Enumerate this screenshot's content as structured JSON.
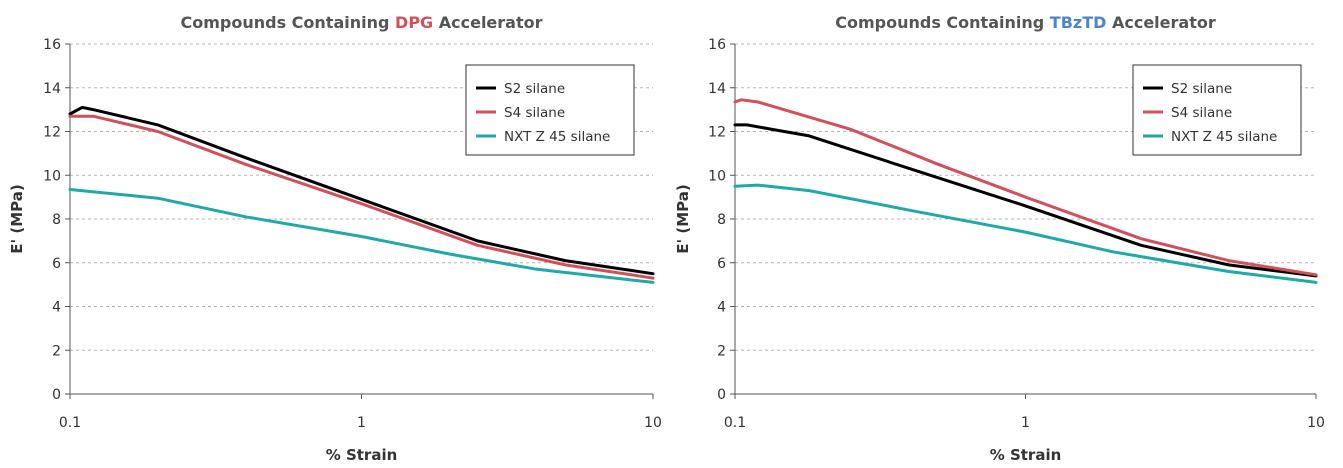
{
  "chart_data": [
    {
      "type": "line",
      "title": "Compounds Containing DPG Accelerator",
      "title_parts": [
        {
          "text": "Compounds Containing ",
          "color": "#555555"
        },
        {
          "text": "DPG",
          "color": "#d1505a"
        },
        {
          "text": " Accelerator",
          "color": "#555555"
        }
      ],
      "xlabel": "% Strain",
      "ylabel": "E' (MPa)",
      "xscale": "log",
      "xlim": [
        0.1,
        10
      ],
      "ylim": [
        0,
        16
      ],
      "xticks": [
        "0.1",
        "1",
        "10"
      ],
      "yticks": [
        "0",
        "2",
        "4",
        "6",
        "8",
        "10",
        "12",
        "14",
        "16"
      ],
      "grid": "horizontal dashed",
      "legend_position": "top-right",
      "series": [
        {
          "name": "S2 silane",
          "color": "#000000",
          "x": [
            0.1,
            0.11,
            0.12,
            0.2,
            0.4,
            1.0,
            2.5,
            5.0,
            10.0
          ],
          "y": [
            12.8,
            13.1,
            13.0,
            12.3,
            10.8,
            8.9,
            7.0,
            6.1,
            5.5
          ]
        },
        {
          "name": "S4 silane",
          "color": "#d1505a",
          "x": [
            0.1,
            0.12,
            0.2,
            0.4,
            1.0,
            2.5,
            5.0,
            10.0
          ],
          "y": [
            12.7,
            12.7,
            12.0,
            10.5,
            8.7,
            6.8,
            5.9,
            5.3
          ],
          "y_": null
        },
        {
          "name": "NXT Z 45 silane",
          "color": "#1fa9a9",
          "x": [
            0.1,
            0.2,
            0.4,
            1.0,
            2.0,
            4.0,
            10.0
          ],
          "y": [
            9.35,
            8.95,
            8.1,
            7.2,
            6.4,
            5.7,
            5.1
          ]
        }
      ]
    },
    {
      "type": "line",
      "title": "Compounds Containing TBzTD Accelerator",
      "title_parts": [
        {
          "text": "Compounds Containing ",
          "color": "#555555"
        },
        {
          "text": "TBzTD",
          "color": "#4a86c8"
        },
        {
          "text": " Accelerator",
          "color": "#555555"
        }
      ],
      "xlabel": "% Strain",
      "ylabel": "E' (MPa)",
      "xscale": "log",
      "xlim": [
        0.1,
        10
      ],
      "ylim": [
        0,
        16
      ],
      "xticks": [
        "0.1",
        "1",
        "10"
      ],
      "yticks": [
        "0",
        "2",
        "4",
        "6",
        "8",
        "10",
        "12",
        "14",
        "16"
      ],
      "grid": "horizontal dashed",
      "legend_position": "top-right",
      "series": [
        {
          "name": "S2 silane",
          "color": "#000000",
          "x": [
            0.1,
            0.11,
            0.18,
            0.4,
            1.0,
            2.5,
            5.0,
            10.0
          ],
          "y": [
            12.3,
            12.3,
            11.8,
            10.3,
            8.6,
            6.8,
            5.9,
            5.4
          ]
        },
        {
          "name": "S4 silane",
          "color": "#d1505a",
          "x": [
            0.1,
            0.105,
            0.12,
            0.25,
            0.5,
            1.0,
            2.5,
            5.0,
            10.0
          ],
          "y": [
            13.35,
            13.45,
            13.35,
            12.1,
            10.5,
            9.0,
            7.1,
            6.1,
            5.45
          ]
        },
        {
          "name": "NXT Z 45 silane",
          "color": "#1fa9a9",
          "x": [
            0.1,
            0.12,
            0.18,
            0.4,
            1.0,
            2.0,
            5.0,
            10.0
          ],
          "y": [
            9.5,
            9.55,
            9.3,
            8.4,
            7.4,
            6.5,
            5.6,
            5.1
          ]
        }
      ]
    }
  ]
}
